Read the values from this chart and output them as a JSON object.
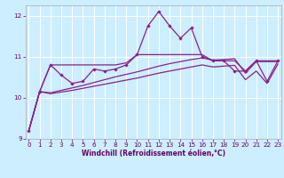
{
  "x": [
    0,
    1,
    2,
    3,
    4,
    5,
    6,
    7,
    8,
    9,
    10,
    11,
    12,
    13,
    14,
    15,
    16,
    17,
    18,
    19,
    20,
    21,
    22,
    23
  ],
  "y_zigzag": [
    9.2,
    10.15,
    10.8,
    10.55,
    10.35,
    10.4,
    10.7,
    10.65,
    10.7,
    10.8,
    11.05,
    11.75,
    12.1,
    11.75,
    11.45,
    11.7,
    11.0,
    10.9,
    10.9,
    10.65,
    10.65,
    10.9,
    10.4,
    10.9
  ],
  "y_flat_upper": [
    9.2,
    10.15,
    10.8,
    10.8,
    10.8,
    10.8,
    10.8,
    10.8,
    10.8,
    10.85,
    11.05,
    11.05,
    11.05,
    11.05,
    11.05,
    11.05,
    11.05,
    10.9,
    10.9,
    10.9,
    10.65,
    10.9,
    10.9,
    10.9
  ],
  "y_slope_mid": [
    9.2,
    10.15,
    10.12,
    10.18,
    10.24,
    10.3,
    10.37,
    10.44,
    10.51,
    10.57,
    10.63,
    10.7,
    10.77,
    10.83,
    10.88,
    10.93,
    10.97,
    10.92,
    10.93,
    10.95,
    10.6,
    10.88,
    10.88,
    10.88
  ],
  "y_slope_low": [
    9.2,
    10.15,
    10.1,
    10.14,
    10.18,
    10.23,
    10.28,
    10.33,
    10.38,
    10.43,
    10.48,
    10.54,
    10.6,
    10.65,
    10.7,
    10.75,
    10.8,
    10.75,
    10.77,
    10.79,
    10.44,
    10.65,
    10.35,
    10.82
  ],
  "color": "#882288",
  "bg_color": "#cceeff",
  "grid_color": "#ffffff",
  "ylim": [
    9.0,
    12.25
  ],
  "xlim": [
    -0.3,
    23.3
  ],
  "xlabel": "Windchill (Refroidissement éolien,°C)",
  "yticks": [
    9,
    10,
    11,
    12
  ],
  "xticks": [
    0,
    1,
    2,
    3,
    4,
    5,
    6,
    7,
    8,
    9,
    10,
    11,
    12,
    13,
    14,
    15,
    16,
    17,
    18,
    19,
    20,
    21,
    22,
    23
  ]
}
